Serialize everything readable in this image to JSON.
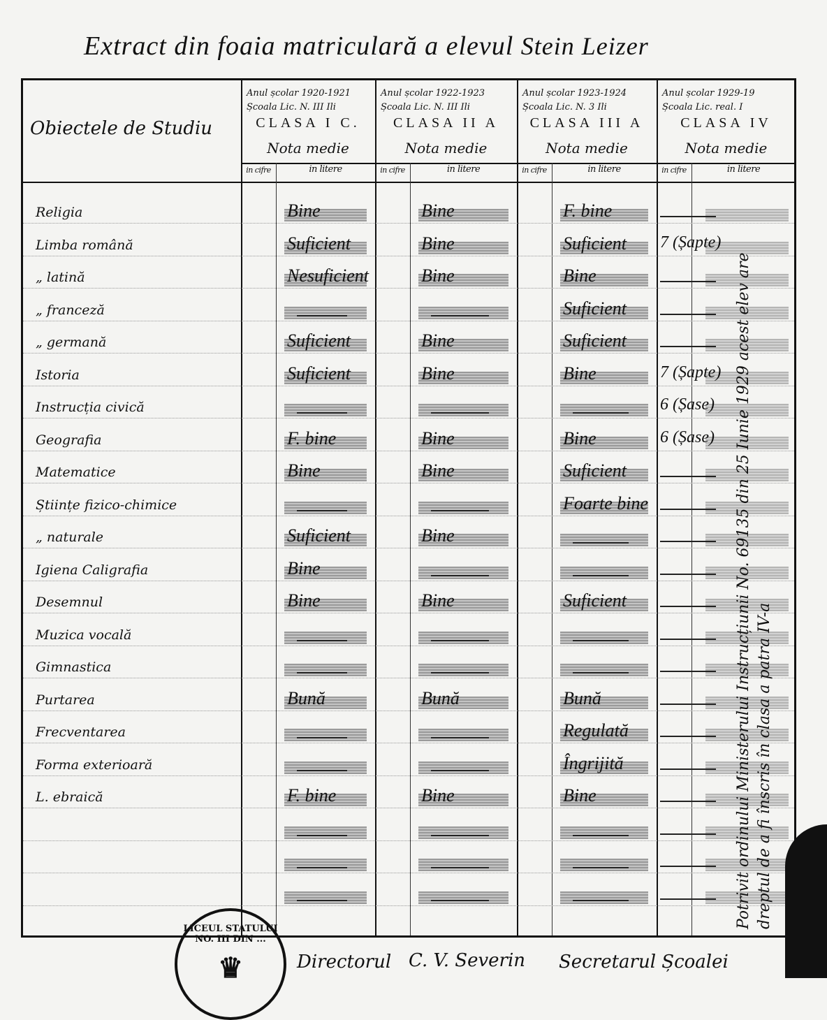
{
  "title": {
    "prefix": "Extract din foaia matriculară a elevul",
    "student": "Stein Leizer"
  },
  "header": {
    "subjects_label": "Obiectele de Studiu",
    "nota": "Nota medie",
    "cifre": "in cifre",
    "litere": "in litere"
  },
  "years": [
    {
      "an": "Anul școlar 1920-1921",
      "scoala": "Școala Lic. N. III Ili",
      "clasa": "CLASA I C."
    },
    {
      "an": "Anul școlar 1922-1923",
      "scoala": "Școala Lic. N. III Ili",
      "clasa": "CLASA II A"
    },
    {
      "an": "Anul școlar 1923-1924",
      "scoala": "Școala Lic. N. 3 Ili",
      "clasa": "CLASA III A"
    },
    {
      "an": "Anul școlar 1929-19",
      "scoala": "Școala Lic. real. I",
      "clasa": "CLASA IV"
    }
  ],
  "rows": [
    {
      "subject": "Religia",
      "grades": [
        "Bine",
        "Bine",
        "F. bine",
        ""
      ]
    },
    {
      "subject": "Limba română",
      "grades": [
        "Suficient",
        "Bine",
        "Suficient",
        "7 (Șapte)"
      ]
    },
    {
      "subject": "„ latină",
      "grades": [
        "Nesuficient",
        "Bine",
        "Bine",
        ""
      ]
    },
    {
      "subject": "„ franceză",
      "grades": [
        "",
        "",
        "Suficient",
        ""
      ]
    },
    {
      "subject": "„ germană",
      "grades": [
        "Suficient",
        "Bine",
        "Suficient",
        ""
      ]
    },
    {
      "subject": "Istoria",
      "grades": [
        "Suficient",
        "Bine",
        "Bine",
        "7 (Șapte)"
      ]
    },
    {
      "subject": "Instrucția civică",
      "grades": [
        "",
        "",
        "",
        "6 (Șase)"
      ]
    },
    {
      "subject": "Geografia",
      "grades": [
        "F. bine",
        "Bine",
        "Bine",
        "6 (Șase)"
      ]
    },
    {
      "subject": "Matematice",
      "grades": [
        "Bine",
        "Bine",
        "Suficient",
        ""
      ]
    },
    {
      "subject": "Științe fizico-chimice",
      "grades": [
        "",
        "",
        "Foarte bine",
        ""
      ]
    },
    {
      "subject": "„ naturale",
      "grades": [
        "Suficient",
        "Bine",
        "",
        ""
      ]
    },
    {
      "subject": "Igiena Caligrafia",
      "grades": [
        "Bine",
        "",
        "",
        ""
      ]
    },
    {
      "subject": "Desemnul",
      "grades": [
        "Bine",
        "Bine",
        "Suficient",
        ""
      ]
    },
    {
      "subject": "Muzica vocală",
      "grades": [
        "",
        "",
        "",
        ""
      ]
    },
    {
      "subject": "Gimnastica",
      "grades": [
        "",
        "",
        "",
        ""
      ]
    },
    {
      "subject": "Purtarea",
      "grades": [
        "Bună",
        "Bună",
        "Bună",
        ""
      ]
    },
    {
      "subject": "Frecventarea",
      "grades": [
        "",
        "",
        "Regulată",
        ""
      ]
    },
    {
      "subject": "Forma exterioară",
      "grades": [
        "",
        "",
        "Îngrijită",
        ""
      ]
    },
    {
      "subject": "L. ebraică",
      "grades": [
        "F. bine",
        "Bine",
        "Bine",
        ""
      ]
    },
    {
      "subject": "",
      "grades": [
        "",
        "",
        "",
        ""
      ]
    },
    {
      "subject": "",
      "grades": [
        "",
        "",
        "",
        ""
      ]
    },
    {
      "subject": "",
      "grades": [
        "",
        "",
        "",
        ""
      ]
    }
  ],
  "side_note": "Potrivit ordinului Ministerului Instrucțiunii No. 69135 din 25 Iunie 1929 acest elev are dreptul de a fi înscris în clasa a patra IV-a",
  "stamp": "LICEUL STATULUI NO. III DIN ...",
  "footer": {
    "director": "Directorul",
    "director_signature": "C. V. Severin",
    "secretary": "Secretarul Școalei"
  }
}
